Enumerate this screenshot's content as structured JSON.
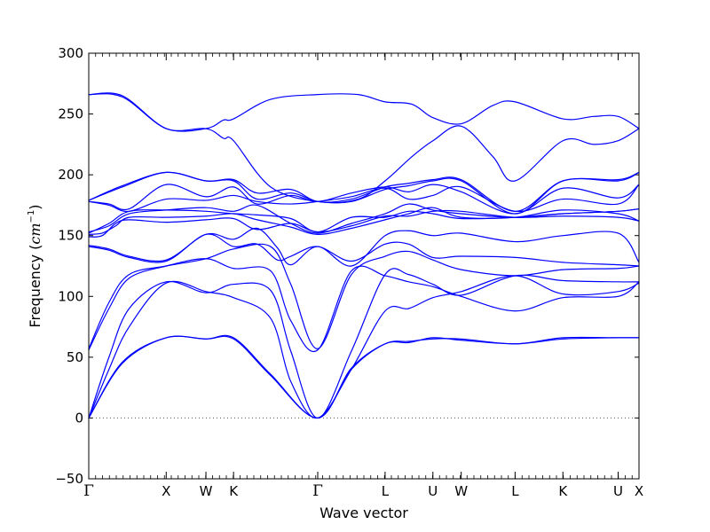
{
  "chart_data": {
    "type": "line",
    "title": "",
    "xlabel": "Wave vector",
    "ylabel": "Frequency (cm⁻¹)",
    "ylabel_parts": {
      "prefix": "Frequency (",
      "unit": "cm",
      "exponent": "−1",
      "suffix": ")"
    },
    "ylim": [
      -50,
      300
    ],
    "yticks": [
      -50,
      0,
      50,
      100,
      150,
      200,
      250,
      300
    ],
    "ytick_labels": [
      "−50",
      "0",
      "50",
      "100",
      "150",
      "200",
      "250",
      "300"
    ],
    "xlim": [
      0,
      8.17
    ],
    "xticks": [
      {
        "pos": 0.0,
        "label": "Γ"
      },
      {
        "pos": 1.15,
        "label": "X"
      },
      {
        "pos": 1.74,
        "label": "W"
      },
      {
        "pos": 2.15,
        "label": "K"
      },
      {
        "pos": 3.4,
        "label": "Γ"
      },
      {
        "pos": 4.4,
        "label": "L"
      },
      {
        "pos": 5.11,
        "label": "U"
      },
      {
        "pos": 5.53,
        "label": "W"
      },
      {
        "pos": 6.33,
        "label": "L"
      },
      {
        "pos": 7.04,
        "label": "K"
      },
      {
        "pos": 7.86,
        "label": "U"
      },
      {
        "pos": 8.17,
        "label": "X"
      }
    ],
    "zero_line": {
      "y": 0,
      "style": "dotted"
    },
    "grid": false,
    "line_color": "#0000ff",
    "series": [
      {
        "x": [
          0,
          0.5,
          1.15,
          1.74,
          2.15,
          2.7,
          3.4,
          3.9,
          4.4,
          4.75,
          5.11,
          5.53,
          6.33,
          7.04,
          7.86,
          8.17
        ],
        "y": [
          0,
          45,
          66,
          65,
          65,
          35,
          0,
          40,
          61,
          63,
          65,
          65,
          61,
          66,
          66,
          66
        ]
      },
      {
        "x": [
          0,
          0.5,
          1.15,
          1.74,
          2.15,
          2.7,
          3.4,
          3.9,
          4.4,
          4.75,
          5.11,
          5.53,
          6.33,
          7.04,
          7.86,
          8.17
        ],
        "y": [
          0,
          46,
          66,
          65,
          66,
          36,
          0,
          41,
          61,
          62,
          66,
          64,
          61,
          65,
          66,
          66
        ]
      },
      {
        "x": [
          0,
          0.3,
          0.6,
          1.15,
          1.74,
          2.15,
          2.7,
          3.0,
          3.4,
          3.9,
          4.4,
          4.75,
          5.11,
          5.53,
          6.33,
          7.04,
          7.86,
          8.17
        ],
        "y": [
          0,
          40,
          75,
          111,
          104,
          99,
          82,
          30,
          0,
          40,
          88,
          90,
          99,
          104,
          117,
          102,
          104,
          111
        ]
      },
      {
        "x": [
          0,
          0.3,
          0.6,
          1.15,
          1.74,
          2.15,
          2.7,
          3.0,
          3.4,
          3.9,
          4.4,
          4.75,
          5.11,
          5.53,
          6.33,
          7.04,
          7.86,
          8.17
        ],
        "y": [
          0,
          50,
          90,
          112,
          103,
          110,
          105,
          55,
          0,
          55,
          118,
          118,
          110,
          101,
          117,
          113,
          112,
          112
        ]
      },
      {
        "x": [
          0,
          0.3,
          0.6,
          1.15,
          1.74,
          2.15,
          2.7,
          3.0,
          3.4,
          3.9,
          4.4,
          4.75,
          5.11,
          5.53,
          6.33,
          7.04,
          7.86,
          8.17
        ],
        "y": [
          56,
          90,
          115,
          125,
          131,
          123,
          121,
          80,
          56,
          121,
          117,
          112,
          108,
          100,
          88,
          99,
          100,
          112
        ]
      },
      {
        "x": [
          0,
          0.3,
          0.6,
          1.15,
          1.74,
          2.15,
          2.7,
          3.0,
          3.4,
          3.9,
          4.4,
          4.75,
          5.11,
          5.53,
          6.33,
          7.04,
          7.86,
          8.17
        ],
        "y": [
          57,
          95,
          118,
          125,
          131,
          139,
          141,
          110,
          57,
          118,
          133,
          137,
          130,
          122,
          117,
          122,
          123,
          125
        ]
      },
      {
        "x": [
          0,
          0.3,
          0.6,
          1.15,
          1.74,
          2.15,
          2.5,
          2.8,
          3.0,
          3.4,
          3.9,
          4.4,
          4.75,
          5.11,
          5.53,
          6.33,
          7.04,
          7.86,
          8.17
        ],
        "y": [
          141,
          138,
          132,
          129,
          151,
          141,
          143,
          130,
          133,
          141,
          129,
          143,
          143,
          132,
          133,
          132,
          128,
          126,
          125
        ]
      },
      {
        "x": [
          0,
          0.3,
          0.6,
          1.15,
          1.74,
          2.15,
          2.5,
          2.8,
          3.0,
          3.4,
          3.9,
          4.4,
          4.75,
          5.11,
          5.53,
          6.33,
          7.04,
          7.86,
          8.17
        ],
        "y": [
          142,
          139,
          133,
          130,
          151,
          147,
          156,
          140,
          126,
          141,
          125,
          150,
          154,
          150,
          152,
          145,
          150,
          152,
          128
        ]
      },
      {
        "x": [
          0,
          0.2,
          0.4,
          0.6,
          1.15,
          1.74,
          2.15,
          2.5,
          3.0,
          3.4,
          3.9,
          4.4,
          4.75,
          5.11,
          5.53,
          6.33,
          7.04,
          7.86,
          8.17
        ],
        "y": [
          149,
          150,
          160,
          163,
          161,
          163,
          164,
          155,
          160,
          153,
          158,
          166,
          166,
          170,
          170,
          165,
          166,
          165,
          162
        ]
      },
      {
        "x": [
          0,
          0.2,
          0.4,
          0.6,
          1.15,
          1.74,
          2.15,
          2.5,
          3.0,
          3.4,
          3.9,
          4.4,
          4.75,
          5.11,
          5.53,
          6.33,
          7.04,
          7.86,
          8.17
        ],
        "y": [
          151,
          152,
          158,
          165,
          165,
          166,
          168,
          163,
          157,
          151,
          156,
          163,
          168,
          173,
          165,
          165,
          171,
          168,
          162
        ]
      },
      {
        "x": [
          0,
          0.3,
          0.6,
          1.15,
          1.74,
          2.15,
          2.5,
          3.0,
          3.4,
          3.9,
          4.4,
          4.75,
          5.11,
          5.53,
          6.33,
          7.04,
          7.86,
          8.17
        ],
        "y": [
          152,
          160,
          170,
          171,
          170,
          168,
          167,
          164,
          153,
          165,
          165,
          170,
          168,
          164,
          165,
          168,
          170,
          172
        ]
      },
      {
        "x": [
          0,
          0.3,
          0.6,
          1.15,
          1.74,
          2.15,
          2.5,
          3.0,
          3.4,
          3.9,
          4.4,
          4.75,
          5.11,
          5.53,
          6.33,
          7.04,
          7.86,
          8.17
        ],
        "y": [
          153,
          158,
          168,
          171,
          173,
          170,
          175,
          160,
          152,
          160,
          168,
          176,
          171,
          168,
          165,
          168,
          170,
          172
        ]
      },
      {
        "x": [
          0,
          0.3,
          0.6,
          1.15,
          1.74,
          2.15,
          2.5,
          3.0,
          3.4,
          3.9,
          4.4,
          4.75,
          5.11,
          5.53,
          6.33,
          7.04,
          7.86,
          8.17
        ],
        "y": [
          178,
          175,
          170,
          180,
          179,
          183,
          178,
          176,
          178,
          182,
          189,
          180,
          183,
          190,
          170,
          180,
          176,
          192
        ]
      },
      {
        "x": [
          0,
          0.3,
          0.6,
          1.15,
          1.74,
          2.15,
          2.5,
          3.0,
          3.4,
          3.9,
          4.4,
          4.75,
          5.11,
          5.53,
          6.33,
          7.04,
          7.86,
          8.17
        ],
        "y": [
          178,
          176,
          172,
          192,
          182,
          190,
          176,
          183,
          178,
          185,
          190,
          186,
          192,
          186,
          168,
          189,
          181,
          192
        ]
      },
      {
        "x": [
          0,
          0.5,
          1.15,
          1.74,
          2.15,
          2.5,
          3.0,
          3.4,
          3.9,
          4.4,
          4.75,
          5.11,
          5.53,
          6.33,
          7.04,
          7.86,
          8.17
        ],
        "y": [
          179,
          190,
          202,
          195,
          195,
          180,
          185,
          178,
          178,
          188,
          191,
          195,
          195,
          168,
          195,
          195,
          202
        ]
      },
      {
        "x": [
          0,
          0.5,
          1.15,
          1.74,
          2.15,
          2.5,
          3.0,
          3.4,
          3.9,
          4.4,
          4.75,
          5.11,
          5.53,
          6.33,
          7.04,
          7.86,
          8.17
        ],
        "y": [
          179,
          191,
          202,
          195,
          196,
          185,
          188,
          178,
          180,
          190,
          193,
          196,
          196,
          170,
          195,
          196,
          202
        ]
      },
      {
        "x": [
          0,
          0.5,
          1.15,
          1.74,
          2.0,
          2.15,
          2.7,
          3.4,
          4.0,
          4.4,
          4.8,
          5.11,
          5.53,
          6.0,
          6.33,
          7.04,
          7.5,
          7.86,
          8.17
        ],
        "y": [
          266,
          265,
          238,
          238,
          230,
          228,
          190,
          178,
          180,
          195,
          215,
          228,
          240,
          215,
          195,
          228,
          225,
          228,
          238
        ]
      },
      {
        "x": [
          0,
          0.5,
          1.15,
          1.74,
          2.0,
          2.15,
          2.7,
          3.4,
          4.0,
          4.4,
          4.8,
          5.11,
          5.53,
          6.0,
          6.33,
          7.04,
          7.5,
          7.86,
          8.17
        ],
        "y": [
          266,
          264,
          238,
          238,
          245,
          246,
          262,
          266,
          266,
          260,
          258,
          247,
          242,
          257,
          260,
          246,
          248,
          248,
          238
        ]
      }
    ]
  }
}
